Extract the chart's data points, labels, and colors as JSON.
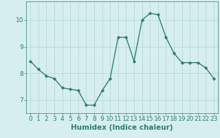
{
  "x": [
    0,
    1,
    2,
    3,
    4,
    5,
    6,
    7,
    8,
    9,
    10,
    11,
    12,
    13,
    14,
    15,
    16,
    17,
    18,
    19,
    20,
    21,
    22,
    23
  ],
  "y": [
    8.45,
    8.15,
    7.9,
    7.8,
    7.45,
    7.4,
    7.35,
    6.8,
    6.8,
    7.35,
    7.8,
    9.35,
    9.35,
    8.45,
    10.0,
    10.25,
    10.2,
    9.35,
    8.75,
    8.4,
    8.4,
    8.4,
    8.2,
    7.8
  ],
  "line_color": "#2e7d6e",
  "marker": "D",
  "marker_size": 2.2,
  "bg_color": "#d6eeee",
  "grid_color": "#b8d8d8",
  "xlabel": "Humidex (Indice chaleur)",
  "ylim": [
    6.5,
    10.7
  ],
  "xlim": [
    -0.5,
    23.5
  ],
  "yticks": [
    7,
    8,
    9,
    10
  ],
  "xticks": [
    0,
    1,
    2,
    3,
    4,
    5,
    6,
    7,
    8,
    9,
    10,
    11,
    12,
    13,
    14,
    15,
    16,
    17,
    18,
    19,
    20,
    21,
    22,
    23
  ],
  "tick_label_fontsize": 6.5,
  "xlabel_fontsize": 7.5
}
